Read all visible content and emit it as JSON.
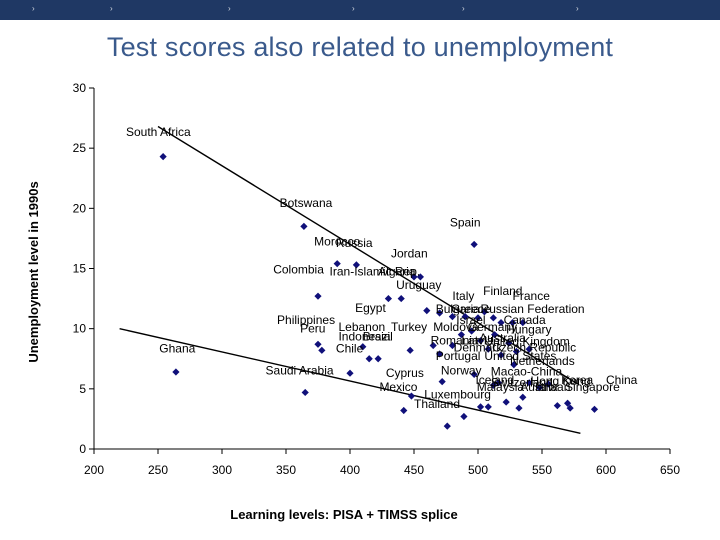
{
  "slide": {
    "title": "Test scores also related to unemployment",
    "colors": {
      "topbar": "#1f3864",
      "title": "#3a5a8c",
      "marker": "#10107a"
    }
  },
  "chart_data": {
    "type": "scatter",
    "xlabel": "Learning levels: PISA + TIMSS splice",
    "ylabel": "Unemployment level in 1990s",
    "xlim": [
      200,
      650
    ],
    "ylim": [
      0,
      30
    ],
    "xticks": [
      200,
      250,
      300,
      350,
      400,
      450,
      500,
      550,
      600,
      650
    ],
    "yticks": [
      0,
      5,
      10,
      15,
      20,
      25,
      30
    ],
    "grid": false,
    "legend": "none",
    "points": [
      {
        "x": 254,
        "y": 24.3
      },
      {
        "x": 364,
        "y": 18.5
      },
      {
        "x": 390,
        "y": 15.4
      },
      {
        "x": 405,
        "y": 15.3
      },
      {
        "x": 375,
        "y": 12.7
      },
      {
        "x": 430,
        "y": 12.5
      },
      {
        "x": 440,
        "y": 12.5
      },
      {
        "x": 450,
        "y": 14.3
      },
      {
        "x": 455,
        "y": 14.3
      },
      {
        "x": 497,
        "y": 17.0
      },
      {
        "x": 460,
        "y": 11.5
      },
      {
        "x": 470,
        "y": 11.3
      },
      {
        "x": 480,
        "y": 11.0
      },
      {
        "x": 490,
        "y": 11.0
      },
      {
        "x": 500,
        "y": 10.9
      },
      {
        "x": 505,
        "y": 11.4
      },
      {
        "x": 512,
        "y": 10.9
      },
      {
        "x": 518,
        "y": 10.5
      },
      {
        "x": 527,
        "y": 10.5
      },
      {
        "x": 535,
        "y": 10.5
      },
      {
        "x": 375,
        "y": 8.7
      },
      {
        "x": 378,
        "y": 8.2
      },
      {
        "x": 410,
        "y": 8.5
      },
      {
        "x": 415,
        "y": 7.5
      },
      {
        "x": 422,
        "y": 7.5
      },
      {
        "x": 447,
        "y": 8.2
      },
      {
        "x": 465,
        "y": 8.6
      },
      {
        "x": 470,
        "y": 7.9
      },
      {
        "x": 480,
        "y": 8.6
      },
      {
        "x": 487,
        "y": 9.5
      },
      {
        "x": 495,
        "y": 9.8
      },
      {
        "x": 502,
        "y": 9.0
      },
      {
        "x": 508,
        "y": 8.3
      },
      {
        "x": 513,
        "y": 9.5
      },
      {
        "x": 518,
        "y": 7.8
      },
      {
        "x": 524,
        "y": 8.8
      },
      {
        "x": 530,
        "y": 8.1
      },
      {
        "x": 540,
        "y": 8.3
      },
      {
        "x": 264,
        "y": 6.4
      },
      {
        "x": 365,
        "y": 4.7
      },
      {
        "x": 400,
        "y": 6.3
      },
      {
        "x": 442,
        "y": 3.2
      },
      {
        "x": 448,
        "y": 4.4
      },
      {
        "x": 472,
        "y": 5.6
      },
      {
        "x": 476,
        "y": 1.9
      },
      {
        "x": 489,
        "y": 2.7
      },
      {
        "x": 497,
        "y": 6.2
      },
      {
        "x": 502,
        "y": 3.5
      },
      {
        "x": 508,
        "y": 3.5
      },
      {
        "x": 512,
        "y": 5.3
      },
      {
        "x": 516,
        "y": 5.5
      },
      {
        "x": 522,
        "y": 3.9
      },
      {
        "x": 528,
        "y": 7.0
      },
      {
        "x": 532,
        "y": 3.4
      },
      {
        "x": 535,
        "y": 4.3
      },
      {
        "x": 540,
        "y": 5.5
      },
      {
        "x": 548,
        "y": 5.1
      },
      {
        "x": 555,
        "y": 5.4
      },
      {
        "x": 562,
        "y": 3.6
      },
      {
        "x": 570,
        "y": 3.8
      },
      {
        "x": 572,
        "y": 3.4
      },
      {
        "x": 591,
        "y": 3.3
      }
    ],
    "labels": [
      {
        "text": "South Africa",
        "x": 225,
        "y": 26.0
      },
      {
        "text": "Botswana",
        "x": 345,
        "y": 20.1
      },
      {
        "text": "Morocco",
        "x": 372,
        "y": 16.9
      },
      {
        "text": "Russia",
        "x": 389,
        "y": 16.8
      },
      {
        "text": "Spain",
        "x": 478,
        "y": 18.5
      },
      {
        "text": "Jordan",
        "x": 432,
        "y": 15.9
      },
      {
        "text": "Colombia",
        "x": 340,
        "y": 14.6
      },
      {
        "text": "Iran-Islamic Rep.",
        "x": 384,
        "y": 14.4
      },
      {
        "text": "Algeria",
        "x": 422,
        "y": 14.4
      },
      {
        "text": "Uruguay",
        "x": 436,
        "y": 13.3
      },
      {
        "text": "Finland",
        "x": 504,
        "y": 12.8
      },
      {
        "text": "France",
        "x": 527,
        "y": 12.4
      },
      {
        "text": "Italy",
        "x": 480,
        "y": 12.4
      },
      {
        "text": "Egypt",
        "x": 404,
        "y": 11.4
      },
      {
        "text": "Bulgaria",
        "x": 467,
        "y": 11.3
      },
      {
        "text": "Greece",
        "x": 479,
        "y": 11.3
      },
      {
        "text": "Russian Federation",
        "x": 502,
        "y": 11.3
      },
      {
        "text": "Israel",
        "x": 483,
        "y": 10.4
      },
      {
        "text": "Canada",
        "x": 520,
        "y": 10.4
      },
      {
        "text": "Philippines",
        "x": 343,
        "y": 10.4
      },
      {
        "text": "Peru",
        "x": 361,
        "y": 9.7
      },
      {
        "text": "Lebanon",
        "x": 391,
        "y": 9.8
      },
      {
        "text": "Turkey",
        "x": 432,
        "y": 9.8
      },
      {
        "text": "Moldova",
        "x": 465,
        "y": 9.8
      },
      {
        "text": "Germany",
        "x": 492,
        "y": 9.8
      },
      {
        "text": "Hungary",
        "x": 522,
        "y": 9.6
      },
      {
        "text": "Indonesia",
        "x": 391,
        "y": 9.0
      },
      {
        "text": "Brazil",
        "x": 410,
        "y": 9.0
      },
      {
        "text": "Australia",
        "x": 501,
        "y": 8.9
      },
      {
        "text": "Romania",
        "x": 463,
        "y": 8.7
      },
      {
        "text": "Latvia",
        "x": 487,
        "y": 8.7
      },
      {
        "text": "United Kingdom",
        "x": 505,
        "y": 8.6
      },
      {
        "text": "Chile",
        "x": 389,
        "y": 8.0
      },
      {
        "text": "Denmark",
        "x": 481,
        "y": 8.1
      },
      {
        "text": "Czech Republic",
        "x": 511,
        "y": 8.1
      },
      {
        "text": "Ghana",
        "x": 251,
        "y": 8.0
      },
      {
        "text": "Portugal",
        "x": 467,
        "y": 7.4
      },
      {
        "text": "United States",
        "x": 505,
        "y": 7.4
      },
      {
        "text": "Netherlands",
        "x": 525,
        "y": 7.0
      },
      {
        "text": "Saudi Arabia",
        "x": 334,
        "y": 6.2
      },
      {
        "text": "Cyprus",
        "x": 428,
        "y": 6.0
      },
      {
        "text": "Norway",
        "x": 471,
        "y": 6.2
      },
      {
        "text": "Macao-China",
        "x": 510,
        "y": 6.1
      },
      {
        "text": "Iceland",
        "x": 498,
        "y": 5.4
      },
      {
        "text": "Switzerland",
        "x": 510,
        "y": 5.2
      },
      {
        "text": "Hong Kong",
        "x": 541,
        "y": 5.3
      },
      {
        "text": "Korea",
        "x": 565,
        "y": 5.4
      },
      {
        "text": "China",
        "x": 600,
        "y": 5.4
      },
      {
        "text": "Malaysia",
        "x": 499,
        "y": 4.8
      },
      {
        "text": "Austria",
        "x": 533,
        "y": 4.8
      },
      {
        "text": "Taiwan",
        "x": 543,
        "y": 4.8
      },
      {
        "text": "Singapore",
        "x": 568,
        "y": 4.8
      },
      {
        "text": "Mexico",
        "x": 423,
        "y": 4.8
      },
      {
        "text": "Luxembourg",
        "x": 458,
        "y": 4.2
      },
      {
        "text": "Thailand",
        "x": 450,
        "y": 3.4
      }
    ],
    "trendlines": [
      {
        "x": [
          250,
          578
        ],
        "y": [
          26.8,
          5.4
        ]
      },
      {
        "x": [
          220,
          580
        ],
        "y": [
          10.0,
          1.3
        ]
      }
    ]
  }
}
